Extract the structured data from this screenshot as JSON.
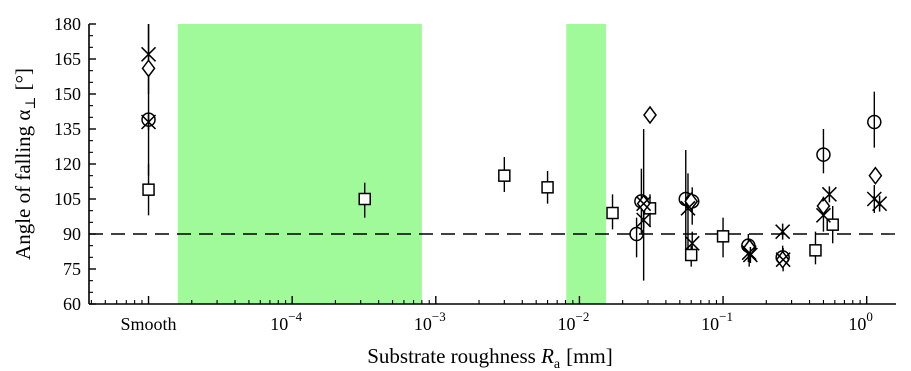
{
  "chart_data": {
    "type": "scatter",
    "title": "",
    "xlabel": "Substrate roughness",
    "xlabel_symbol": "R",
    "xlabel_symbol_sub": "a",
    "xlabel_unit": "[mm]",
    "ylabel": "Angle of falling α",
    "ylabel_sub": "⊥",
    "ylabel_unit": "[°]",
    "xscale": "log",
    "xlim": [
      3.85e-06,
      1.6
    ],
    "ylim": [
      60,
      180
    ],
    "grid": false,
    "legend": "none",
    "y_ticks": [
      60,
      75,
      90,
      105,
      120,
      135,
      150,
      165,
      180
    ],
    "x_tick_labels": [
      {
        "value": 1e-05,
        "label": "Smooth"
      },
      {
        "value": 0.0001,
        "base": "10",
        "exp": "−4"
      },
      {
        "value": 0.001,
        "base": "10",
        "exp": "−3"
      },
      {
        "value": 0.01,
        "base": "10",
        "exp": "−2"
      },
      {
        "value": 0.1,
        "base": "10",
        "exp": "−1"
      },
      {
        "value": 1,
        "base": "10",
        "exp": "0"
      }
    ],
    "x_major_ticks": [
      1e-05,
      0.0001,
      0.001,
      0.01,
      0.1,
      1
    ],
    "reference_line": {
      "y": 90,
      "style": "dashed"
    },
    "shaded_regions": [
      {
        "xmin": 1.6e-05,
        "xmax": 0.0008,
        "color": "#a0fa9a"
      },
      {
        "xmin": 0.0081,
        "xmax": 0.0153,
        "color": "#a0fa9a"
      }
    ],
    "series": [
      {
        "marker": "square",
        "points": [
          {
            "x": 1e-05,
            "y": 109,
            "lo": 98,
            "hi": 120
          },
          {
            "x": 0.00032,
            "y": 105,
            "lo": 97,
            "hi": 112
          },
          {
            "x": 0.003,
            "y": 115,
            "lo": 108,
            "hi": 123
          },
          {
            "x": 0.006,
            "y": 110,
            "lo": 103,
            "hi": 117
          },
          {
            "x": 0.017,
            "y": 99,
            "lo": 92,
            "hi": 107
          },
          {
            "x": 0.031,
            "y": 101,
            "lo": 93,
            "hi": 107
          },
          {
            "x": 0.06,
            "y": 81,
            "lo": 76,
            "hi": 85
          },
          {
            "x": 0.1,
            "y": 89,
            "lo": 80,
            "hi": 97
          },
          {
            "x": 0.44,
            "y": 83,
            "lo": 77,
            "hi": 91
          },
          {
            "x": 0.58,
            "y": 94,
            "lo": 86,
            "hi": 102
          }
        ]
      },
      {
        "marker": "circle",
        "points": [
          {
            "x": 1e-05,
            "y": 139,
            "lo": 115,
            "hi": 180
          },
          {
            "x": 0.025,
            "y": 90,
            "lo": 80,
            "hi": 97
          },
          {
            "x": 0.027,
            "y": 104,
            "lo": 90,
            "hi": 118
          },
          {
            "x": 0.055,
            "y": 105,
            "lo": 80,
            "hi": 126
          },
          {
            "x": 0.061,
            "y": 104,
            "lo": 94,
            "hi": 110
          },
          {
            "x": 0.15,
            "y": 85,
            "lo": 78,
            "hi": 90
          },
          {
            "x": 0.26,
            "y": 80,
            "lo": 76,
            "hi": 85
          },
          {
            "x": 0.5,
            "y": 124,
            "lo": 116,
            "hi": 135
          },
          {
            "x": 1.13,
            "y": 138,
            "lo": 127,
            "hi": 151
          }
        ]
      },
      {
        "marker": "diamond",
        "points": [
          {
            "x": 1e-05,
            "y": 161
          },
          {
            "x": 0.028,
            "y": 103
          },
          {
            "x": 0.031,
            "y": 141
          },
          {
            "x": 0.06,
            "y": 104
          },
          {
            "x": 0.153,
            "y": 84
          },
          {
            "x": 0.26,
            "y": 79
          },
          {
            "x": 0.5,
            "y": 102
          },
          {
            "x": 1.15,
            "y": 115
          }
        ]
      },
      {
        "marker": "cross",
        "points": [
          {
            "x": 1e-05,
            "y": 167,
            "lo": 150,
            "hi": 180
          },
          {
            "x": 0.028,
            "y": 103,
            "lo": 70,
            "hi": 135
          },
          {
            "x": 0.057,
            "y": 101,
            "lo": 82,
            "hi": 116
          },
          {
            "x": 0.061,
            "y": 86,
            "lo": 80,
            "hi": 91
          },
          {
            "x": 0.152,
            "y": 82,
            "lo": 76,
            "hi": 88
          },
          {
            "x": 0.262,
            "y": 79,
            "lo": 74,
            "hi": 84
          },
          {
            "x": 0.5,
            "y": 98,
            "lo": 91,
            "hi": 106
          },
          {
            "x": 1.13,
            "y": 105,
            "lo": 99,
            "hi": 111
          }
        ]
      },
      {
        "marker": "asterisk",
        "points": [
          {
            "x": 1e-05,
            "y": 138
          },
          {
            "x": 0.028,
            "y": 96
          },
          {
            "x": 0.155,
            "y": 81
          },
          {
            "x": 0.26,
            "y": 91
          },
          {
            "x": 0.55,
            "y": 107
          },
          {
            "x": 1.23,
            "y": 103
          }
        ]
      }
    ]
  }
}
